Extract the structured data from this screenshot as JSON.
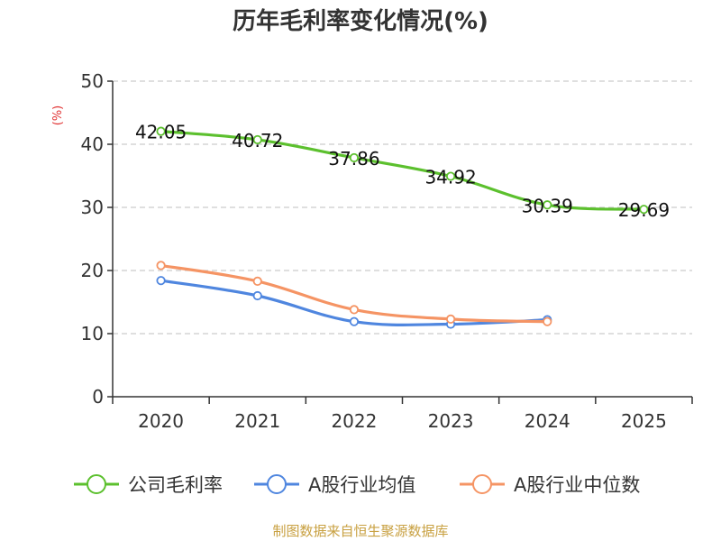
{
  "chart_data": {
    "type": "line",
    "title": "历年毛利率变化情况(%)",
    "ylabel": "(%)",
    "xlabel": "",
    "categories": [
      "2020",
      "2021",
      "2022",
      "2023",
      "2024",
      "2025"
    ],
    "ylim": [
      0,
      50
    ],
    "yticks": [
      0,
      10,
      20,
      30,
      40,
      50
    ],
    "grid": true,
    "legend_position": "bottom",
    "series": [
      {
        "name": "公司毛利率",
        "color": "#5cc02e",
        "values": [
          42.05,
          40.72,
          37.86,
          34.92,
          30.39,
          29.69
        ],
        "labels": [
          "42.05",
          "40.72",
          "37.86",
          "34.92",
          "30.39",
          "29.69"
        ]
      },
      {
        "name": "A股行业均值",
        "color": "#4f86df",
        "values": [
          18.4,
          16.0,
          11.9,
          11.5,
          12.2,
          null
        ]
      },
      {
        "name": "A股行业中位数",
        "color": "#f59464",
        "values": [
          20.8,
          18.3,
          13.8,
          12.3,
          11.9,
          null
        ]
      }
    ]
  },
  "source": "制图数据来自恒生聚源数据库",
  "colors": {
    "title": "#333333",
    "ylabel": "#e03030",
    "source": "#c8a040",
    "grid": "#cccccc",
    "axis": "#333333"
  }
}
